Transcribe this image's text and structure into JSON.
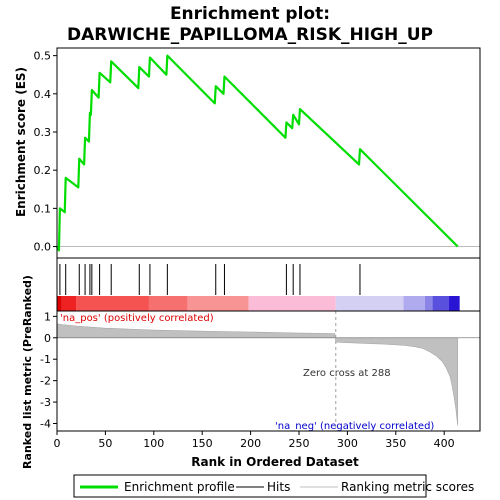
{
  "chart_data": {
    "type": "line",
    "title_line1": "Enrichment plot:",
    "title_line2": "DARWICHE_PAPILLOMA_RISK_HIGH_UP",
    "ylabel_top": "Enrichment score (ES)",
    "ylabel_bottom": "Ranked list metric (PreRanked)",
    "xlabel": "Rank in Ordered Dataset",
    "x_range": [
      0,
      437
    ],
    "es_ylim": [
      -0.03,
      0.52
    ],
    "metric_ylim": [
      -4.35,
      1.25
    ],
    "x_ticks": [
      0,
      50,
      100,
      150,
      200,
      250,
      300,
      350,
      400
    ],
    "es_ticks": [
      0.0,
      0.1,
      0.2,
      0.3,
      0.4,
      0.5
    ],
    "es_tick_labels": [
      "0.0",
      "0.1",
      "0.2",
      "0.3",
      "0.4",
      "0.5"
    ],
    "metric_ticks": [
      1,
      0,
      -1,
      -2,
      -3,
      -4
    ],
    "enrichment_profile": {
      "x": [
        0,
        2,
        3,
        8,
        9,
        22,
        23,
        28,
        29,
        33,
        34,
        35,
        36,
        43,
        44,
        55,
        56,
        84,
        85,
        95,
        96,
        113,
        114,
        163,
        164,
        172,
        173,
        236,
        237,
        243,
        244,
        250,
        251,
        312,
        313,
        414
      ],
      "y": [
        0.0,
        -0.01,
        0.1,
        0.09,
        0.18,
        0.155,
        0.23,
        0.215,
        0.285,
        0.275,
        0.35,
        0.345,
        0.41,
        0.39,
        0.455,
        0.43,
        0.485,
        0.415,
        0.47,
        0.445,
        0.495,
        0.45,
        0.5,
        0.375,
        0.42,
        0.4,
        0.445,
        0.285,
        0.325,
        0.31,
        0.345,
        0.32,
        0.36,
        0.215,
        0.255,
        0.0
      ]
    },
    "hits": [
      3,
      9,
      23,
      29,
      34,
      36,
      44,
      56,
      85,
      96,
      114,
      164,
      173,
      237,
      244,
      251,
      313
    ],
    "metric_curve": {
      "x": [
        0,
        5,
        20,
        50,
        100,
        150,
        200,
        250,
        287,
        288,
        300,
        340,
        360,
        370,
        378,
        385,
        392,
        398,
        402,
        406,
        408,
        410,
        412,
        414
      ],
      "y": [
        0.65,
        0.62,
        0.55,
        0.45,
        0.36,
        0.31,
        0.27,
        0.22,
        0.2,
        -0.2,
        -0.23,
        -0.3,
        -0.36,
        -0.42,
        -0.5,
        -0.65,
        -0.85,
        -1.1,
        -1.4,
        -1.8,
        -2.2,
        -2.7,
        -3.3,
        -4.1
      ]
    },
    "zero_cross_x": 288,
    "heatmap_segments": [
      {
        "x0": 0,
        "x1": 5,
        "color": "#dd0000"
      },
      {
        "x0": 5,
        "x1": 20,
        "color": "#ee2222"
      },
      {
        "x0": 20,
        "x1": 95,
        "color": "#f55252"
      },
      {
        "x0": 95,
        "x1": 135,
        "color": "#f77070"
      },
      {
        "x0": 135,
        "x1": 198,
        "color": "#f99494"
      },
      {
        "x0": 198,
        "x1": 288,
        "color": "#fbbcd8"
      },
      {
        "x0": 288,
        "x1": 358,
        "color": "#d4d0f4"
      },
      {
        "x0": 358,
        "x1": 380,
        "color": "#b0aaee"
      },
      {
        "x0": 380,
        "x1": 388,
        "color": "#8a84e6"
      },
      {
        "x0": 388,
        "x1": 405,
        "color": "#5a50de"
      },
      {
        "x0": 405,
        "x1": 416,
        "color": "#2a14d4"
      }
    ],
    "annotations": {
      "pos_label": "'na_pos' (positively correlated)",
      "neg_label": "'na_neg' (negatively correlated)",
      "zero_cross_label": "Zero cross at 288"
    },
    "legend": {
      "position": "bottom",
      "entries": [
        "Enrichment profile",
        "Hits",
        "Ranking metric scores"
      ]
    },
    "colors": {
      "profile": "#00dd00",
      "hits": "#000000",
      "metric_fill": "#c0c0c0",
      "zero_line": "#a0a0a0",
      "pos_text": "#dd0000",
      "neg_text": "#0000cc"
    }
  }
}
